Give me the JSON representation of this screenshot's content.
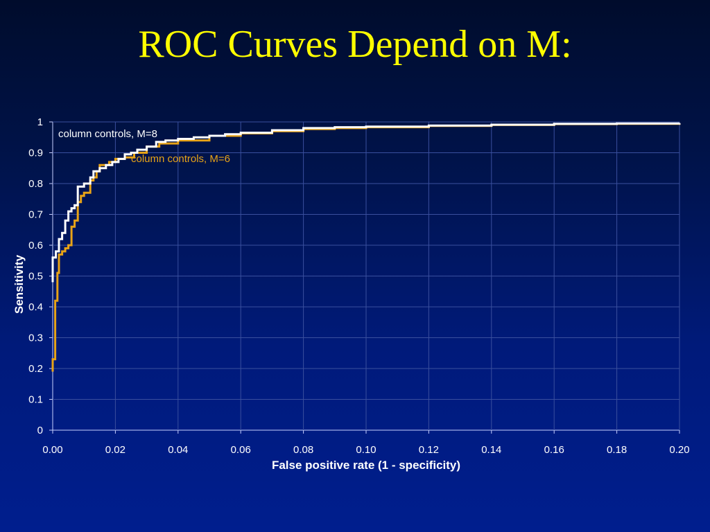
{
  "slide": {
    "title": "ROC Curves Depend on M:"
  },
  "colors": {
    "background_top": "#000c2c",
    "background_bottom": "#001e8e",
    "title": "#ffff00",
    "series_m8": "#ffffff",
    "series_m6": "#e8a317",
    "axis_text": "#ffffff",
    "gridline": "#3a4f9e"
  },
  "chart_data": {
    "type": "line",
    "title": "",
    "xlabel": "False positive rate (1 - specificity)",
    "ylabel": "Sensitivity",
    "xlim": [
      0,
      0.2
    ],
    "ylim": [
      0,
      1
    ],
    "xticks": [
      "0.00",
      "0.02",
      "0.04",
      "0.06",
      "0.08",
      "0.10",
      "0.12",
      "0.14",
      "0.16",
      "0.18",
      "0.20"
    ],
    "yticks": [
      "0",
      "0.1",
      "0.2",
      "0.3",
      "0.4",
      "0.5",
      "0.6",
      "0.7",
      "0.8",
      "0.9",
      "1"
    ],
    "grid": true,
    "legend": "inline labels",
    "series": [
      {
        "name": "column controls, M=8",
        "color": "#ffffff",
        "x": [
          0,
          0,
          0.001,
          0.001,
          0.002,
          0.002,
          0.003,
          0.003,
          0.004,
          0.004,
          0.005,
          0.005,
          0.006,
          0.007,
          0.008,
          0.008,
          0.009,
          0.01,
          0.011,
          0.012,
          0.013,
          0.015,
          0.017,
          0.019,
          0.021,
          0.023,
          0.025,
          0.027,
          0.03,
          0.033,
          0.036,
          0.04,
          0.045,
          0.05,
          0.055,
          0.06,
          0.07,
          0.08,
          0.09,
          0.1,
          0.12,
          0.14,
          0.16,
          0.18,
          0.2
        ],
        "y": [
          0.48,
          0.56,
          0.56,
          0.58,
          0.58,
          0.62,
          0.62,
          0.64,
          0.64,
          0.68,
          0.68,
          0.71,
          0.72,
          0.73,
          0.74,
          0.79,
          0.79,
          0.8,
          0.8,
          0.82,
          0.84,
          0.85,
          0.86,
          0.87,
          0.88,
          0.895,
          0.9,
          0.91,
          0.92,
          0.935,
          0.94,
          0.945,
          0.95,
          0.955,
          0.96,
          0.965,
          0.973,
          0.98,
          0.983,
          0.985,
          0.988,
          0.991,
          0.994,
          0.995,
          0.996
        ]
      },
      {
        "name": "column controls, M=6",
        "color": "#e8a317",
        "x": [
          0,
          0,
          0.0008,
          0.0008,
          0.0015,
          0.0015,
          0.002,
          0.002,
          0.003,
          0.003,
          0.004,
          0.005,
          0.006,
          0.006,
          0.007,
          0.008,
          0.008,
          0.009,
          0.01,
          0.011,
          0.012,
          0.012,
          0.013,
          0.014,
          0.015,
          0.016,
          0.018,
          0.02,
          0.023,
          0.026,
          0.03,
          0.034,
          0.04,
          0.05,
          0.06,
          0.07,
          0.08,
          0.09,
          0.1,
          0.12,
          0.14,
          0.16,
          0.18,
          0.2
        ],
        "y": [
          0.19,
          0.23,
          0.23,
          0.42,
          0.42,
          0.51,
          0.51,
          0.57,
          0.57,
          0.58,
          0.59,
          0.6,
          0.63,
          0.66,
          0.68,
          0.7,
          0.74,
          0.76,
          0.77,
          0.77,
          0.79,
          0.81,
          0.82,
          0.84,
          0.86,
          0.86,
          0.87,
          0.88,
          0.885,
          0.9,
          0.92,
          0.93,
          0.94,
          0.955,
          0.963,
          0.97,
          0.977,
          0.98,
          0.983,
          0.987,
          0.99,
          0.993,
          0.994,
          0.996
        ]
      }
    ]
  }
}
